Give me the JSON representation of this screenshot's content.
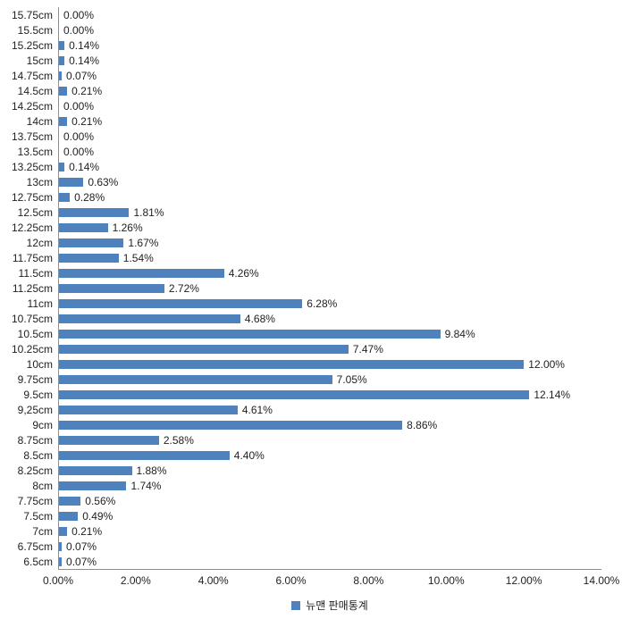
{
  "chart_data": {
    "type": "bar",
    "orientation": "horizontal",
    "title": "",
    "legend": "뉴맨 판매통계",
    "legend_position": "bottom",
    "grid": false,
    "xlim": [
      0,
      14
    ],
    "x_tick_labels": [
      "0.00%",
      "2.00%",
      "4.00%",
      "6.00%",
      "8.00%",
      "10.00%",
      "12.00%",
      "14.00%"
    ],
    "categories": [
      "15.75cm",
      "15.5cm",
      "15.25cm",
      "15cm",
      "14.75cm",
      "14.5cm",
      "14.25cm",
      "14cm",
      "13.75cm",
      "13.5cm",
      "13.25cm",
      "13cm",
      "12.75cm",
      "12.5cm",
      "12.25cm",
      "12cm",
      "11.75cm",
      "11.5cm",
      "11.25cm",
      "11cm",
      "10.75cm",
      "10.5cm",
      "10.25cm",
      "10cm",
      "9.75cm",
      "9.5cm",
      "9,25cm",
      "9cm",
      "8.75cm",
      "8.5cm",
      "8.25cm",
      "8cm",
      "7.75cm",
      "7.5cm",
      "7cm",
      "6.75cm",
      "6.5cm"
    ],
    "values": [
      0.0,
      0.0,
      0.14,
      0.14,
      0.07,
      0.21,
      0.0,
      0.21,
      0.0,
      0.0,
      0.14,
      0.63,
      0.28,
      1.81,
      1.26,
      1.67,
      1.54,
      4.26,
      2.72,
      6.28,
      4.68,
      9.84,
      7.47,
      12.0,
      7.05,
      12.14,
      4.61,
      8.86,
      2.58,
      4.4,
      1.88,
      1.74,
      0.56,
      0.49,
      0.21,
      0.07,
      0.07
    ],
    "value_labels": [
      "0.00%",
      "0.00%",
      "0.14%",
      "0.14%",
      "0.07%",
      "0.21%",
      "0.00%",
      "0.21%",
      "0.00%",
      "0.00%",
      "0.14%",
      "0.63%",
      "0.28%",
      "1.81%",
      "1.26%",
      "1.67%",
      "1.54%",
      "4.26%",
      "2.72%",
      "6.28%",
      "4.68%",
      "9.84%",
      "7.47%",
      "12.00%",
      "7.05%",
      "12.14%",
      "4.61%",
      "8.86%",
      "2.58%",
      "4.40%",
      "1.88%",
      "1.74%",
      "0.56%",
      "0.49%",
      "0.21%",
      "0.07%",
      "0.07%"
    ]
  },
  "colors": {
    "bar": "#4F81BD",
    "axis": "#8E8E8E",
    "text": "#1F1F1F"
  }
}
